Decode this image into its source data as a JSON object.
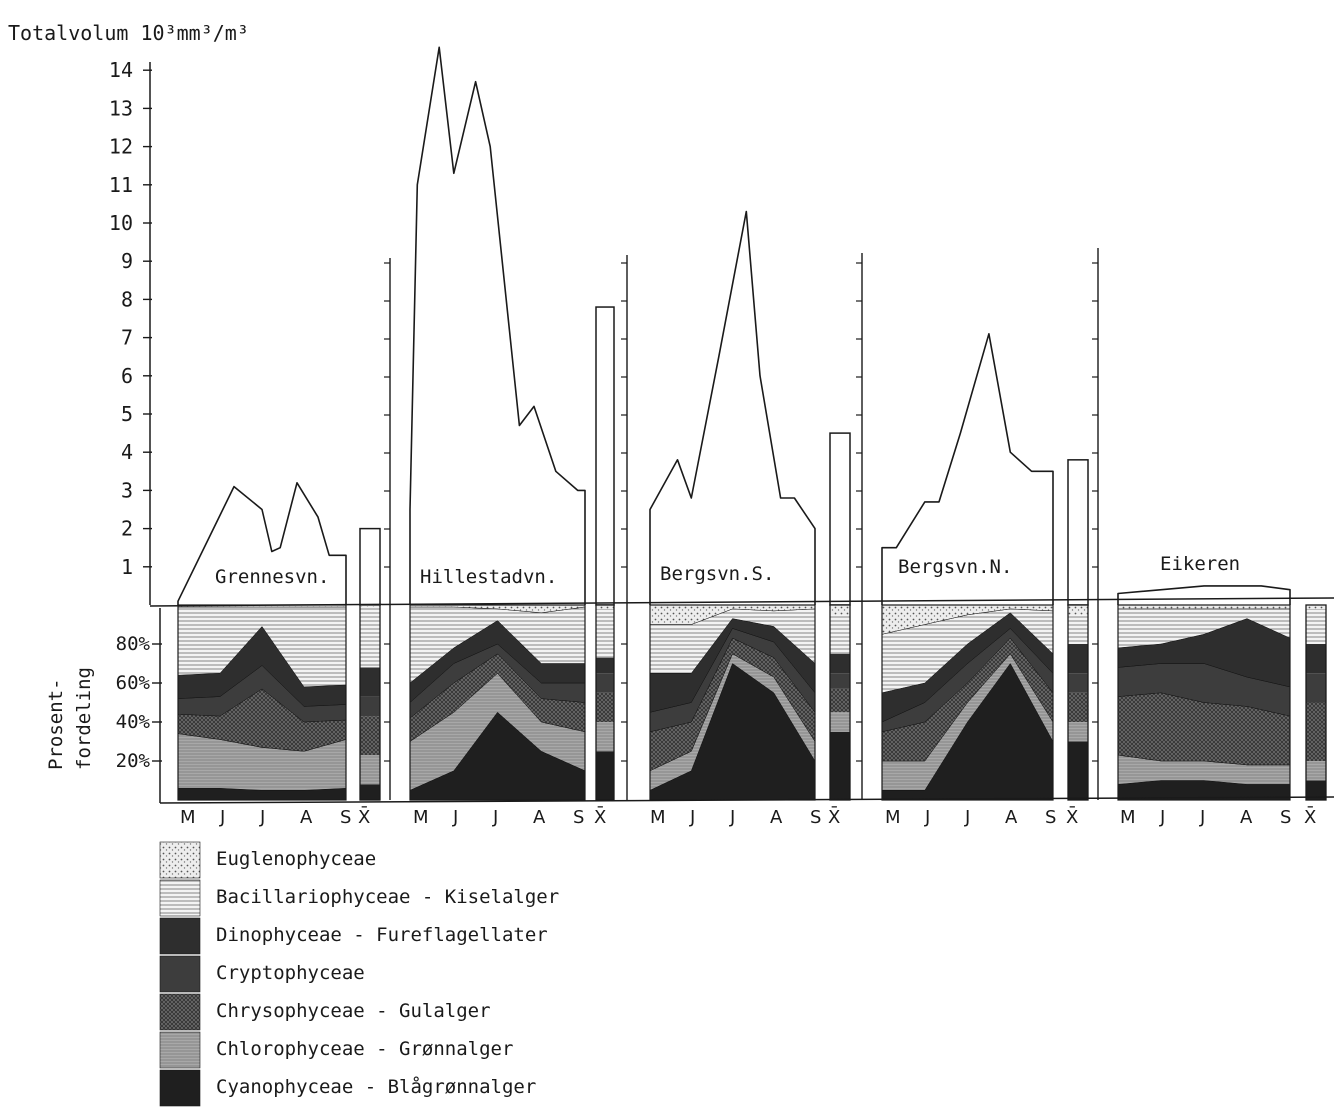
{
  "chart_data": {
    "type": "area",
    "ylabel_top": "Totalvolum 10³mm³/m³",
    "ylabel_bottom_line1": "Prosent-",
    "ylabel_bottom_line2": "fordeling",
    "y_ticks_top": [
      "1",
      "2",
      "3",
      "4",
      "5",
      "6",
      "7",
      "8",
      "9",
      "10",
      "11",
      "12",
      "13",
      "14"
    ],
    "ylim_top": [
      0,
      14.5
    ],
    "y_ticks_bottom": [
      "20%",
      "40%",
      "60%",
      "80%"
    ],
    "month_labels": [
      "M",
      "J",
      "J",
      "A",
      "S"
    ],
    "mean_label": "X̄",
    "colors": {
      "Euglenophyceae": "#d9d9d9",
      "Bacillariophyceae": "#e3e3e3",
      "Dinophyceae": "#2e2e2e",
      "Cryptophyceae": "#3d3d3d",
      "Chrysophyceae": "#5a5a5a",
      "Chlorophyceae": "#9a9a9a",
      "Cyanophyceae": "#1f1f1f"
    },
    "lakes": [
      {
        "name": "Grennesvn.",
        "volume_x": [
          0,
          0.28,
          0.4,
          0.6,
          0.67,
          0.73,
          0.85,
          1.0,
          1.08,
          1.2
        ],
        "volume": [
          0.1,
          2.2,
          3.1,
          2.5,
          1.4,
          1.5,
          3.2,
          2.3,
          1.3,
          1.3
        ],
        "volume_mean": 2.0,
        "composition": [
          {
            "Cyanophyceae": 6,
            "Chlorophyceae": 28,
            "Chrysophyceae": 10,
            "Cryptophyceae": 8,
            "Dinophyceae": 12,
            "Bacillariophyceae": 35,
            "Euglenophyceae": 1
          },
          {
            "Cyanophyceae": 6,
            "Chlorophyceae": 25,
            "Chrysophyceae": 12,
            "Cryptophyceae": 10,
            "Dinophyceae": 12,
            "Bacillariophyceae": 34,
            "Euglenophyceae": 1
          },
          {
            "Cyanophyceae": 5,
            "Chlorophyceae": 22,
            "Chrysophyceae": 30,
            "Cryptophyceae": 12,
            "Dinophyceae": 20,
            "Bacillariophyceae": 10,
            "Euglenophyceae": 1
          },
          {
            "Cyanophyceae": 5,
            "Chlorophyceae": 20,
            "Chrysophyceae": 15,
            "Cryptophyceae": 8,
            "Dinophyceae": 10,
            "Bacillariophyceae": 41,
            "Euglenophyceae": 1
          },
          {
            "Cyanophyceae": 6,
            "Chlorophyceae": 25,
            "Chrysophyceae": 10,
            "Cryptophyceae": 8,
            "Dinophyceae": 10,
            "Bacillariophyceae": 40,
            "Euglenophyceae": 1
          }
        ],
        "composition_mean": {
          "Cyanophyceae": 8,
          "Chlorophyceae": 15,
          "Chrysophyceae": 20,
          "Cryptophyceae": 10,
          "Dinophyceae": 15,
          "Bacillariophyceae": 31,
          "Euglenophyceae": 1
        }
      },
      {
        "name": "Hillestadvn.",
        "volume_x": [
          0,
          0.05,
          0.2,
          0.3,
          0.45,
          0.55,
          0.75,
          0.85,
          1.0,
          1.15,
          1.2
        ],
        "volume": [
          2.5,
          11.0,
          14.6,
          11.3,
          13.7,
          12.0,
          4.7,
          5.2,
          3.5,
          3.0,
          3.0
        ],
        "volume_mean": 7.8,
        "composition": [
          {
            "Cyanophyceae": 5,
            "Chlorophyceae": 25,
            "Chrysophyceae": 12,
            "Cryptophyceae": 8,
            "Dinophyceae": 10,
            "Bacillariophyceae": 39,
            "Euglenophyceae": 1
          },
          {
            "Cyanophyceae": 15,
            "Chlorophyceae": 30,
            "Chrysophyceae": 15,
            "Cryptophyceae": 10,
            "Dinophyceae": 8,
            "Bacillariophyceae": 21,
            "Euglenophyceae": 1
          },
          {
            "Cyanophyceae": 45,
            "Chlorophyceae": 20,
            "Chrysophyceae": 10,
            "Cryptophyceae": 5,
            "Dinophyceae": 12,
            "Bacillariophyceae": 6,
            "Euglenophyceae": 2
          },
          {
            "Cyanophyceae": 25,
            "Chlorophyceae": 15,
            "Chrysophyceae": 12,
            "Cryptophyceae": 8,
            "Dinophyceae": 10,
            "Bacillariophyceae": 26,
            "Euglenophyceae": 4
          },
          {
            "Cyanophyceae": 15,
            "Chlorophyceae": 20,
            "Chrysophyceae": 15,
            "Cryptophyceae": 10,
            "Dinophyceae": 10,
            "Bacillariophyceae": 29,
            "Euglenophyceae": 1
          }
        ],
        "composition_mean": {
          "Cyanophyceae": 25,
          "Chlorophyceae": 15,
          "Chrysophyceae": 15,
          "Cryptophyceae": 10,
          "Dinophyceae": 8,
          "Bacillariophyceae": 25,
          "Euglenophyceae": 2
        }
      },
      {
        "name": "Bergsvn.S.",
        "volume_x": [
          0,
          0.2,
          0.3,
          0.5,
          0.7,
          0.8,
          0.95,
          1.05,
          1.2
        ],
        "volume": [
          2.5,
          3.8,
          2.8,
          6.5,
          10.3,
          6.0,
          2.8,
          2.8,
          2.0
        ],
        "volume_mean": 4.5,
        "composition": [
          {
            "Cyanophyceae": 5,
            "Chlorophyceae": 10,
            "Chrysophyceae": 20,
            "Cryptophyceae": 10,
            "Dinophyceae": 20,
            "Bacillariophyceae": 25,
            "Euglenophyceae": 10
          },
          {
            "Cyanophyceae": 15,
            "Chlorophyceae": 10,
            "Chrysophyceae": 15,
            "Cryptophyceae": 10,
            "Dinophyceae": 15,
            "Bacillariophyceae": 25,
            "Euglenophyceae": 10
          },
          {
            "Cyanophyceae": 70,
            "Chlorophyceae": 5,
            "Chrysophyceae": 8,
            "Cryptophyceae": 5,
            "Dinophyceae": 5,
            "Bacillariophyceae": 5,
            "Euglenophyceae": 2
          },
          {
            "Cyanophyceae": 55,
            "Chlorophyceae": 8,
            "Chrysophyceae": 10,
            "Cryptophyceae": 8,
            "Dinophyceae": 8,
            "Bacillariophyceae": 8,
            "Euglenophyceae": 3
          },
          {
            "Cyanophyceae": 20,
            "Chlorophyceae": 10,
            "Chrysophyceae": 15,
            "Cryptophyceae": 10,
            "Dinophyceae": 15,
            "Bacillariophyceae": 28,
            "Euglenophyceae": 2
          }
        ],
        "composition_mean": {
          "Cyanophyceae": 35,
          "Chlorophyceae": 10,
          "Chrysophyceae": 12,
          "Cryptophyceae": 8,
          "Dinophyceae": 10,
          "Bacillariophyceae": 20,
          "Euglenophyceae": 5
        }
      },
      {
        "name": "Bergsvn.N.",
        "volume_x": [
          0,
          0.1,
          0.3,
          0.4,
          0.55,
          0.75,
          0.9,
          1.05,
          1.2
        ],
        "volume": [
          1.5,
          1.5,
          2.7,
          2.7,
          4.5,
          7.1,
          4.0,
          3.5,
          3.5
        ],
        "volume_mean": 3.8,
        "composition": [
          {
            "Cyanophyceae": 5,
            "Chlorophyceae": 15,
            "Chrysophyceae": 15,
            "Cryptophyceae": 5,
            "Dinophyceae": 15,
            "Bacillariophyceae": 30,
            "Euglenophyceae": 15
          },
          {
            "Cyanophyceae": 5,
            "Chlorophyceae": 15,
            "Chrysophyceae": 20,
            "Cryptophyceae": 10,
            "Dinophyceae": 10,
            "Bacillariophyceae": 30,
            "Euglenophyceae": 10
          },
          {
            "Cyanophyceae": 40,
            "Chlorophyceae": 10,
            "Chrysophyceae": 10,
            "Cryptophyceae": 10,
            "Dinophyceae": 10,
            "Bacillariophyceae": 15,
            "Euglenophyceae": 5
          },
          {
            "Cyanophyceae": 70,
            "Chlorophyceae": 5,
            "Chrysophyceae": 8,
            "Cryptophyceae": 5,
            "Dinophyceae": 8,
            "Bacillariophyceae": 2,
            "Euglenophyceae": 2
          },
          {
            "Cyanophyceae": 30,
            "Chlorophyceae": 10,
            "Chrysophyceae": 15,
            "Cryptophyceae": 10,
            "Dinophyceae": 10,
            "Bacillariophyceae": 22,
            "Euglenophyceae": 3
          }
        ],
        "composition_mean": {
          "Cyanophyceae": 30,
          "Chlorophyceae": 10,
          "Chrysophyceae": 15,
          "Cryptophyceae": 10,
          "Dinophyceae": 15,
          "Bacillariophyceae": 15,
          "Euglenophyceae": 5
        }
      },
      {
        "name": "Eikeren",
        "volume_x": [
          0,
          0.6,
          1.0,
          1.2
        ],
        "volume": [
          0.3,
          0.5,
          0.5,
          0.4
        ],
        "volume_mean": null,
        "composition": [
          {
            "Cyanophyceae": 8,
            "Chlorophyceae": 15,
            "Chrysophyceae": 30,
            "Cryptophyceae": 15,
            "Dinophyceae": 10,
            "Bacillariophyceae": 20,
            "Euglenophyceae": 2
          },
          {
            "Cyanophyceae": 10,
            "Chlorophyceae": 10,
            "Chrysophyceae": 35,
            "Cryptophyceae": 15,
            "Dinophyceae": 10,
            "Bacillariophyceae": 18,
            "Euglenophyceae": 2
          },
          {
            "Cyanophyceae": 10,
            "Chlorophyceae": 10,
            "Chrysophyceae": 30,
            "Cryptophyceae": 20,
            "Dinophyceae": 15,
            "Bacillariophyceae": 13,
            "Euglenophyceae": 2
          },
          {
            "Cyanophyceae": 8,
            "Chlorophyceae": 10,
            "Chrysophyceae": 30,
            "Cryptophyceae": 15,
            "Dinophyceae": 30,
            "Bacillariophyceae": 5,
            "Euglenophyceae": 2
          },
          {
            "Cyanophyceae": 8,
            "Chlorophyceae": 10,
            "Chrysophyceae": 25,
            "Cryptophyceae": 15,
            "Dinophyceae": 25,
            "Bacillariophyceae": 15,
            "Euglenophyceae": 2
          }
        ],
        "composition_mean": {
          "Cyanophyceae": 10,
          "Chlorophyceae": 10,
          "Chrysophyceae": 30,
          "Cryptophyceae": 15,
          "Dinophyceae": 15,
          "Bacillariophyceae": 18,
          "Euglenophyceae": 2
        }
      }
    ],
    "legend": [
      {
        "key": "Euglenophyceae",
        "label": "Euglenophyceae"
      },
      {
        "key": "Bacillariophyceae",
        "label": "Bacillariophyceae - Kiselalger"
      },
      {
        "key": "Dinophyceae",
        "label": "Dinophyceae -   Fureflagellater"
      },
      {
        "key": "Cryptophyceae",
        "label": "Cryptophyceae"
      },
      {
        "key": "Chrysophyceae",
        "label": "Chrysophyceae - Gulalger"
      },
      {
        "key": "Chlorophyceae",
        "label": "Chlorophyceae - Grønnalger"
      },
      {
        "key": "Cyanophyceae",
        "label": "Cyanophyceae  - Blågrønnalger"
      }
    ]
  }
}
